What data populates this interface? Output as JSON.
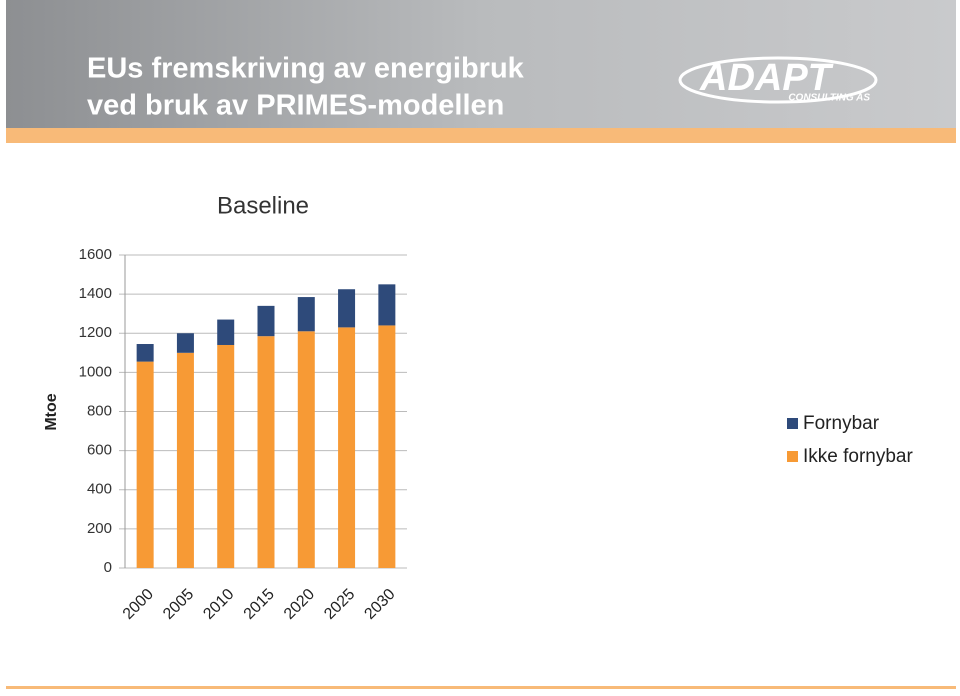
{
  "header": {
    "title": [
      "EUs fremskriving av energibruk",
      "ved bruk av PRIMES-modellen"
    ],
    "logo": [
      "ADAPT",
      "CONSULTING AS"
    ]
  },
  "chart_data": {
    "type": "stacked_bar",
    "title": "Baseline",
    "y_label": "Mtoe",
    "categories": [
      "2000",
      "2005",
      "2010",
      "2015",
      "2020",
      "2025",
      "2030"
    ],
    "series": [
      {
        "name": "Fornybar",
        "color": "#2e4a7a",
        "values": [
          90,
          100,
          130,
          155,
          175,
          195,
          210
        ]
      },
      {
        "name": "Ikke fornybar",
        "color": "#f79a35",
        "values": [
          1055,
          1100,
          1140,
          1185,
          1210,
          1230,
          1240
        ]
      }
    ],
    "ylim": [
      0,
      1600
    ],
    "yticks": [
      0,
      200,
      400,
      600,
      800,
      1000,
      1200,
      1400,
      1600
    ],
    "grid": true
  }
}
